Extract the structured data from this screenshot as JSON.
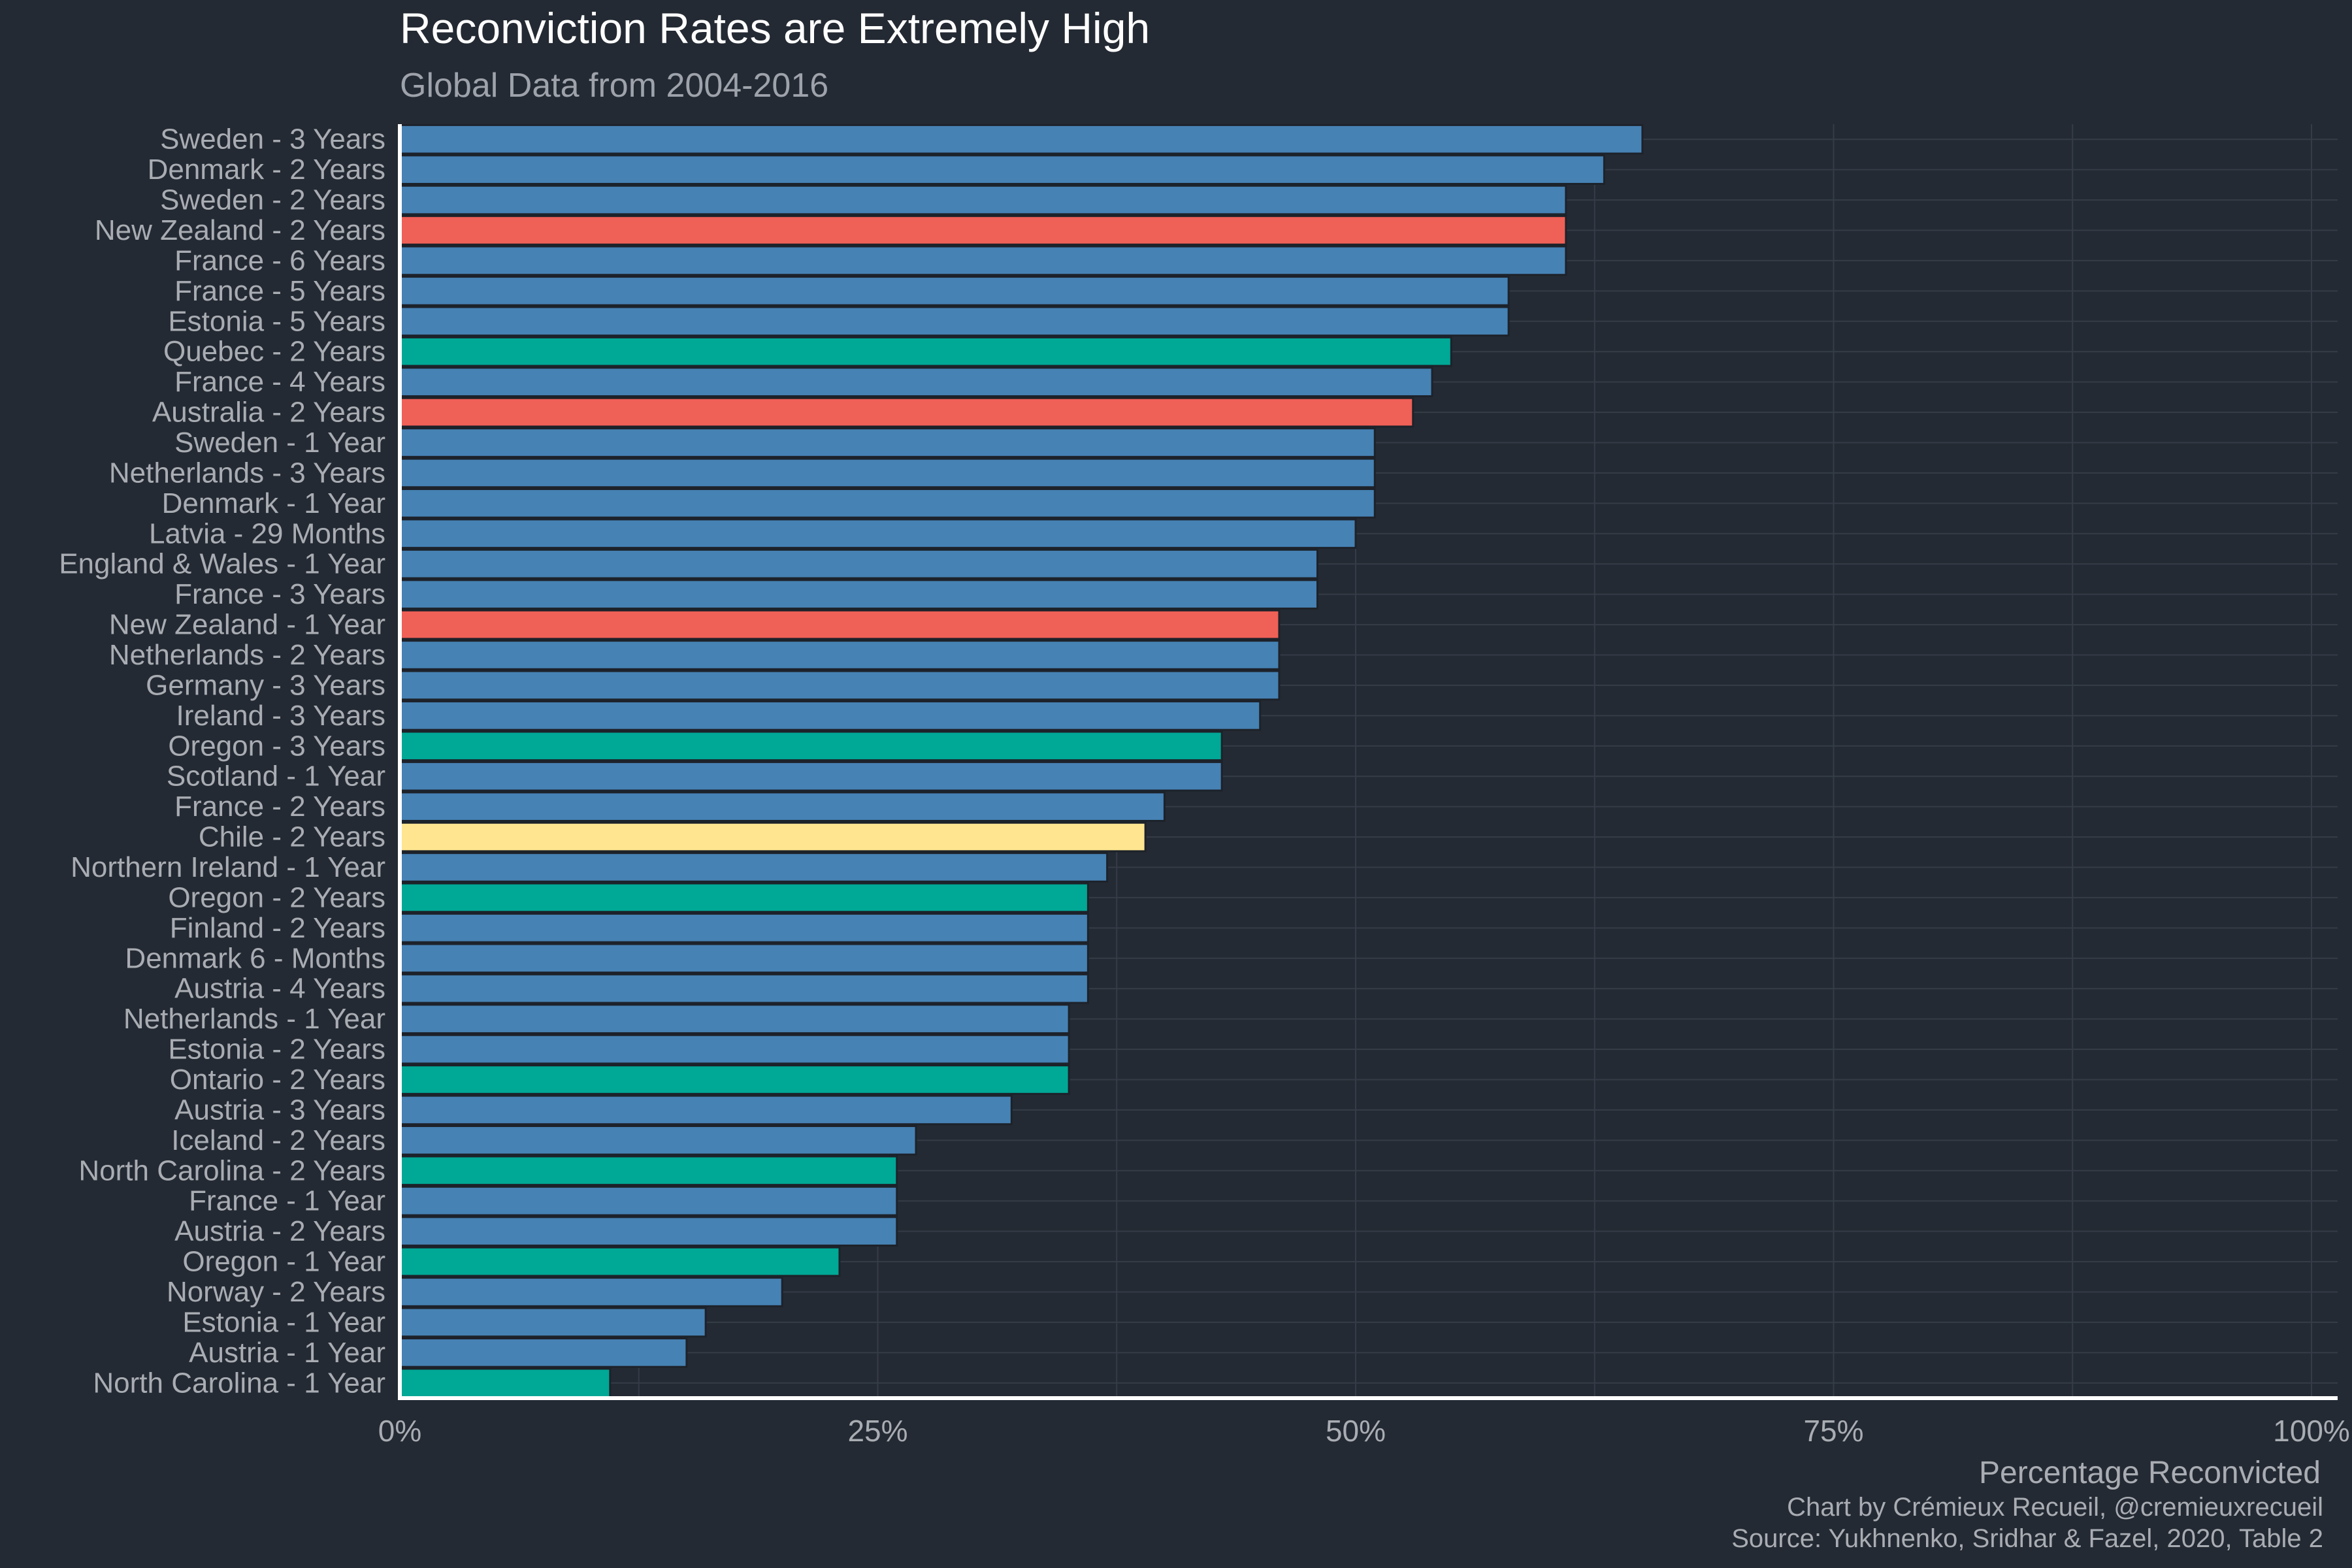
{
  "chart_data": {
    "type": "bar",
    "orientation": "horizontal",
    "title": "Reconviction Rates are Extremely High",
    "subtitle": "Global Data from 2004-2016",
    "xlabel": "Percentage Reconvicted",
    "ylabel": "",
    "caption_lines": [
      "Chart by Crémieux Recueil, @cremieuxrecueil",
      "Source: Yukhnenko, Sridhar & Fazel, 2020, Table 2"
    ],
    "xlim": [
      0,
      1
    ],
    "x_ticks": [
      {
        "value": 0,
        "label": "0%"
      },
      {
        "value": 0.25,
        "label": "25%"
      },
      {
        "value": 0.5,
        "label": "50%"
      },
      {
        "value": 0.75,
        "label": "75%"
      },
      {
        "value": 1,
        "label": "100%"
      }
    ],
    "grid": true,
    "legend": "none",
    "colors": {
      "background": "#242a33",
      "grid": "#353c47",
      "axis_line": "#ffffff",
      "title": "#ffffff",
      "subtitle": "#9ea3ab",
      "tick_label": "#a9adb3",
      "bar_outline": "#1d222a",
      "blue": "#4682b4",
      "red": "#ef6057",
      "teal": "#00a896",
      "yellow": "#ffe58f"
    },
    "bars": [
      {
        "label": "Sweden - 3 Years",
        "value": 0.65,
        "color": "blue"
      },
      {
        "label": "Denmark - 2 Years",
        "value": 0.63,
        "color": "blue"
      },
      {
        "label": "Sweden - 2 Years",
        "value": 0.61,
        "color": "blue"
      },
      {
        "label": "New Zealand - 2 Years",
        "value": 0.61,
        "color": "red"
      },
      {
        "label": "France - 6 Years",
        "value": 0.61,
        "color": "blue"
      },
      {
        "label": "France - 5 Years",
        "value": 0.58,
        "color": "blue"
      },
      {
        "label": "Estonia - 5 Years",
        "value": 0.58,
        "color": "blue"
      },
      {
        "label": "Quebec - 2 Years",
        "value": 0.55,
        "color": "teal"
      },
      {
        "label": "France - 4 Years",
        "value": 0.54,
        "color": "blue"
      },
      {
        "label": "Australia - 2 Years",
        "value": 0.53,
        "color": "red"
      },
      {
        "label": "Sweden - 1 Year",
        "value": 0.51,
        "color": "blue"
      },
      {
        "label": "Netherlands - 3 Years",
        "value": 0.51,
        "color": "blue"
      },
      {
        "label": "Denmark - 1 Year",
        "value": 0.51,
        "color": "blue"
      },
      {
        "label": "Latvia - 29 Months",
        "value": 0.5,
        "color": "blue"
      },
      {
        "label": "England & Wales - 1 Year",
        "value": 0.48,
        "color": "blue"
      },
      {
        "label": "France - 3 Years",
        "value": 0.48,
        "color": "blue"
      },
      {
        "label": "New Zealand - 1 Year",
        "value": 0.46,
        "color": "red"
      },
      {
        "label": "Netherlands - 2 Years",
        "value": 0.46,
        "color": "blue"
      },
      {
        "label": "Germany - 3 Years",
        "value": 0.46,
        "color": "blue"
      },
      {
        "label": "Ireland - 3 Years",
        "value": 0.45,
        "color": "blue"
      },
      {
        "label": "Oregon - 3 Years",
        "value": 0.43,
        "color": "teal"
      },
      {
        "label": "Scotland - 1 Year",
        "value": 0.43,
        "color": "blue"
      },
      {
        "label": "France - 2 Years",
        "value": 0.4,
        "color": "blue"
      },
      {
        "label": "Chile - 2 Years",
        "value": 0.39,
        "color": "yellow"
      },
      {
        "label": "Northern Ireland - 1 Year",
        "value": 0.37,
        "color": "blue"
      },
      {
        "label": "Oregon - 2 Years",
        "value": 0.36,
        "color": "teal"
      },
      {
        "label": "Finland - 2 Years",
        "value": 0.36,
        "color": "blue"
      },
      {
        "label": "Denmark 6 - Months",
        "value": 0.36,
        "color": "blue"
      },
      {
        "label": "Austria - 4 Years",
        "value": 0.36,
        "color": "blue"
      },
      {
        "label": "Netherlands - 1 Year",
        "value": 0.35,
        "color": "blue"
      },
      {
        "label": "Estonia - 2 Years",
        "value": 0.35,
        "color": "blue"
      },
      {
        "label": "Ontario - 2 Years",
        "value": 0.35,
        "color": "teal"
      },
      {
        "label": "Austria - 3 Years",
        "value": 0.32,
        "color": "blue"
      },
      {
        "label": "Iceland - 2 Years",
        "value": 0.27,
        "color": "blue"
      },
      {
        "label": "North Carolina - 2 Years",
        "value": 0.26,
        "color": "teal"
      },
      {
        "label": "France - 1 Year",
        "value": 0.26,
        "color": "blue"
      },
      {
        "label": "Austria - 2 Years",
        "value": 0.26,
        "color": "blue"
      },
      {
        "label": "Oregon - 1 Year",
        "value": 0.23,
        "color": "teal"
      },
      {
        "label": "Norway - 2 Years",
        "value": 0.2,
        "color": "blue"
      },
      {
        "label": "Estonia - 1 Year",
        "value": 0.16,
        "color": "blue"
      },
      {
        "label": "Austria - 1 Year",
        "value": 0.15,
        "color": "blue"
      },
      {
        "label": "North Carolina - 1 Year",
        "value": 0.11,
        "color": "teal"
      }
    ]
  }
}
